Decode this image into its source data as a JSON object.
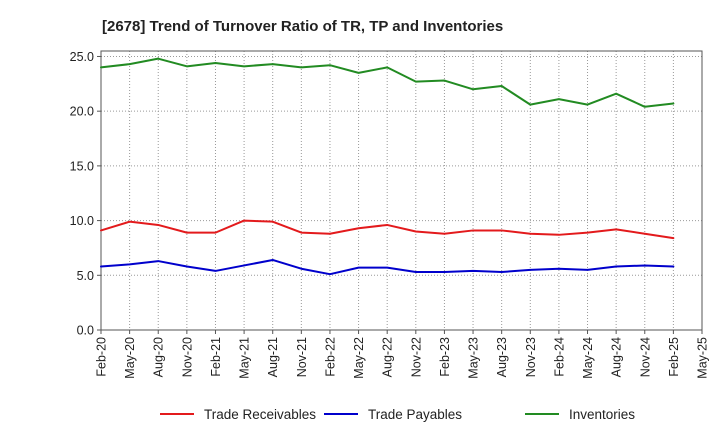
{
  "chart_data": {
    "type": "line",
    "title": "[2678]  Trend of Turnover Ratio of TR, TP and Inventories",
    "xlabel": "",
    "ylabel": "",
    "ylim": [
      0,
      25.5
    ],
    "yticks": [
      "0.0",
      "5.0",
      "10.0",
      "15.0",
      "20.0",
      "25.0"
    ],
    "ytick_values": [
      0,
      5,
      10,
      15,
      20,
      25
    ],
    "x_tick_labels": [
      "Feb-20",
      "May-20",
      "Aug-20",
      "Nov-20",
      "Feb-21",
      "May-21",
      "Aug-21",
      "Nov-21",
      "Feb-22",
      "May-22",
      "Aug-22",
      "Nov-22",
      "Feb-23",
      "May-23",
      "Aug-23",
      "Nov-23",
      "Feb-24",
      "May-24",
      "Aug-24",
      "Nov-24",
      "Feb-25",
      "May-25"
    ],
    "x": [
      "Feb-20",
      "May-20",
      "Aug-20",
      "Nov-20",
      "Feb-21",
      "May-21",
      "Aug-21",
      "Nov-21",
      "Feb-22",
      "May-22",
      "Aug-22",
      "Nov-22",
      "Feb-23",
      "May-23",
      "Aug-23",
      "Nov-23",
      "Feb-24",
      "May-24",
      "Aug-24",
      "Nov-24",
      "Feb-25"
    ],
    "grid": true,
    "legend_position": "bottom",
    "series": [
      {
        "name": "Trade Receivables",
        "color": "#e31a1c",
        "values": [
          9.1,
          9.9,
          9.6,
          8.9,
          8.9,
          10.0,
          9.9,
          8.9,
          8.8,
          9.3,
          9.6,
          9.0,
          8.8,
          9.1,
          9.1,
          8.8,
          8.7,
          8.9,
          9.2,
          8.8,
          8.4
        ]
      },
      {
        "name": "Trade Payables",
        "color": "#0000cc",
        "values": [
          5.8,
          6.0,
          6.3,
          5.8,
          5.4,
          5.9,
          6.4,
          5.6,
          5.1,
          5.7,
          5.7,
          5.3,
          5.3,
          5.4,
          5.3,
          5.5,
          5.6,
          5.5,
          5.8,
          5.9,
          5.8
        ]
      },
      {
        "name": "Inventories",
        "color": "#228b22",
        "values": [
          24.0,
          24.3,
          24.8,
          24.1,
          24.4,
          24.1,
          24.3,
          24.0,
          24.2,
          23.5,
          24.0,
          22.7,
          22.8,
          22.0,
          22.3,
          20.6,
          21.1,
          20.6,
          21.6,
          20.4,
          20.7
        ]
      }
    ]
  }
}
